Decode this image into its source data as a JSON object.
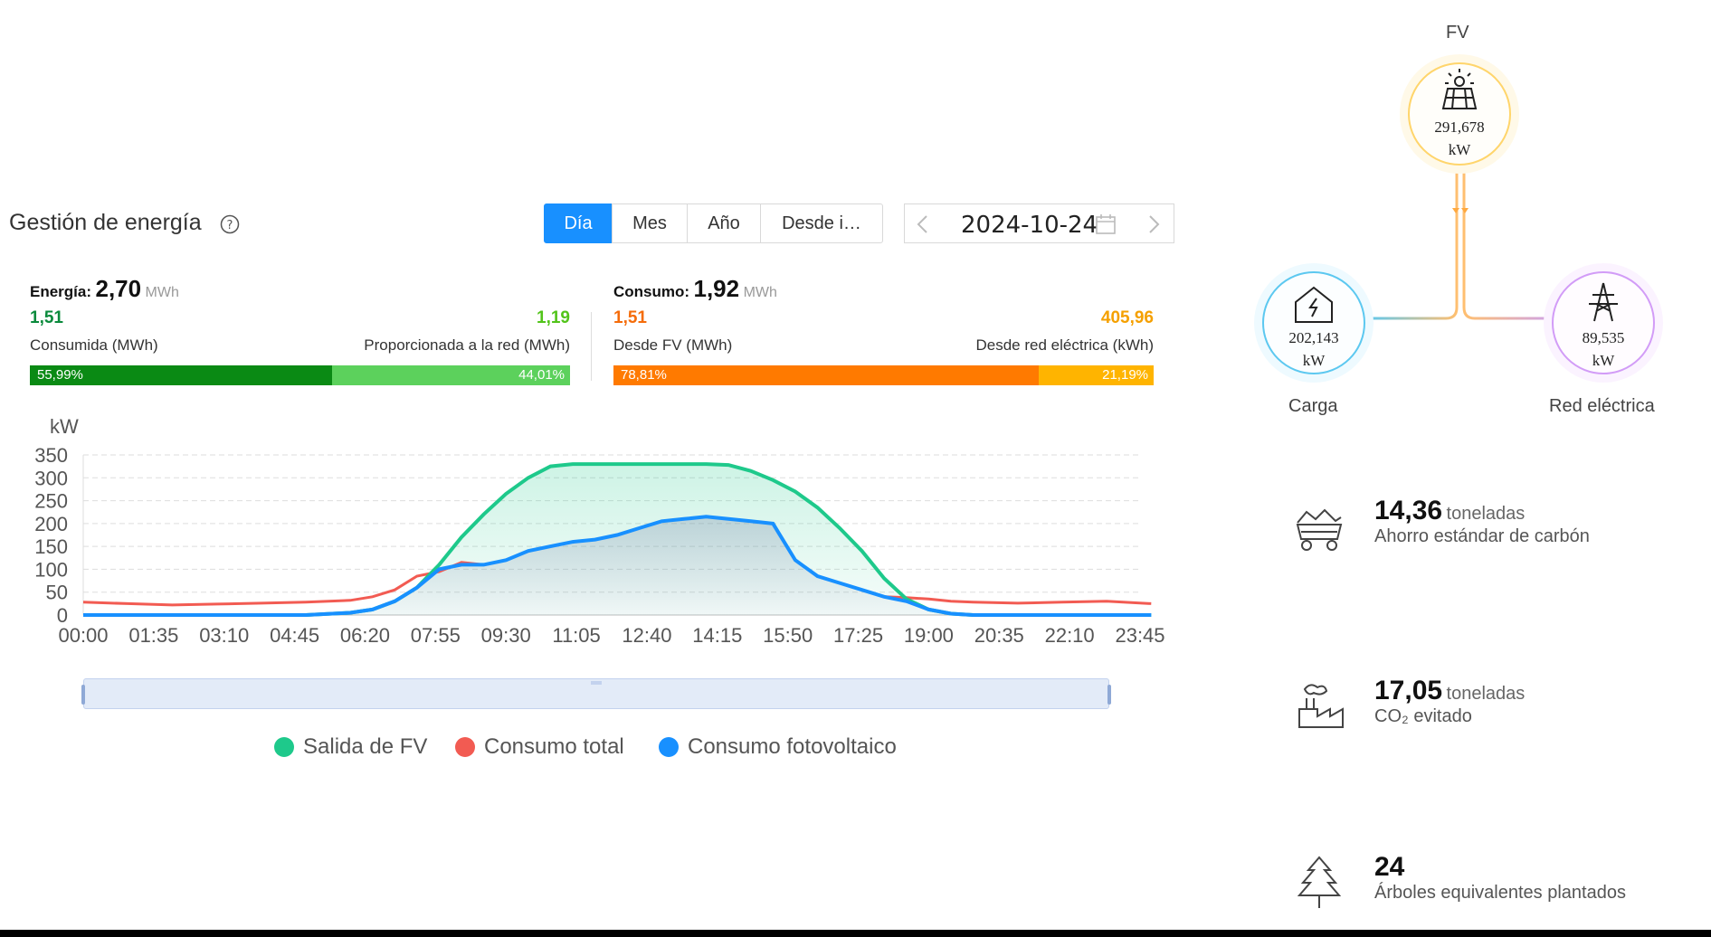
{
  "header": {
    "title": "Gestión de energía",
    "tabs": [
      "Día",
      "Mes",
      "Año",
      "Desde i…"
    ],
    "active_tab": "Día",
    "date": "2024-10-24"
  },
  "energy": {
    "label": "Energía:",
    "value": "2,70",
    "unit": "MWh",
    "left_value": "1,51",
    "left_label": "Consumida (MWh)",
    "right_value": "1,19",
    "right_label": "Proporcionada a la red (MWh)",
    "left_pct": "55,99%",
    "right_pct": "44,01%",
    "left_fraction": 0.5599,
    "colors": {
      "left": "#0a8a14",
      "right": "#5cd15c"
    }
  },
  "consumption": {
    "label": "Consumo:",
    "value": "1,92",
    "unit": "MWh",
    "left_value": "1,51",
    "left_label": "Desde FV (MWh)",
    "right_value": "405,96",
    "right_label": "Desde red eléctrica (kWh)",
    "left_pct": "78,81%",
    "right_pct": "21,19%",
    "left_fraction": 0.7881,
    "colors": {
      "left": "#ff7a00",
      "right": "#ffb400"
    }
  },
  "chart_data": {
    "type": "line",
    "ylabel": "kW",
    "ylim": [
      0,
      350
    ],
    "yticks": [
      "0",
      "50",
      "100",
      "150",
      "200",
      "250",
      "300",
      "350"
    ],
    "xticks": [
      "00:00",
      "01:35",
      "03:10",
      "04:45",
      "06:20",
      "07:55",
      "09:30",
      "11:05",
      "12:40",
      "14:15",
      "15:50",
      "17:25",
      "19:00",
      "20:35",
      "22:10",
      "23:45"
    ],
    "x_hours": [
      0,
      1,
      2,
      3,
      4,
      5,
      6,
      6.5,
      7,
      7.5,
      8,
      8.5,
      9,
      9.5,
      10,
      10.5,
      11,
      11.5,
      12,
      12.5,
      13,
      13.5,
      14,
      14.5,
      15,
      15.5,
      16,
      16.5,
      17,
      17.5,
      18,
      18.5,
      19,
      19.5,
      20,
      21,
      22,
      23,
      24
    ],
    "grid": true,
    "legend_position": "bottom",
    "series": [
      {
        "name": "Salida de FV",
        "color": "#1ec98b",
        "values": [
          0,
          0,
          0,
          0,
          0,
          0,
          5,
          12,
          30,
          60,
          110,
          170,
          220,
          265,
          300,
          325,
          330,
          330,
          330,
          330,
          330,
          330,
          330,
          328,
          315,
          295,
          270,
          235,
          190,
          140,
          80,
          35,
          12,
          3,
          0,
          0,
          0,
          0,
          0
        ]
      },
      {
        "name": "Consumo total",
        "color": "#f25b52",
        "values": [
          28,
          25,
          22,
          24,
          26,
          28,
          32,
          40,
          55,
          85,
          95,
          115,
          110,
          120,
          140,
          150,
          160,
          165,
          175,
          190,
          205,
          210,
          215,
          210,
          205,
          200,
          120,
          85,
          70,
          55,
          40,
          38,
          35,
          30,
          28,
          26,
          28,
          30,
          25
        ]
      },
      {
        "name": "Consumo fotovoltaico",
        "color": "#1890ff",
        "values": [
          0,
          0,
          0,
          0,
          0,
          0,
          5,
          12,
          30,
          60,
          100,
          110,
          110,
          120,
          140,
          150,
          160,
          165,
          175,
          190,
          205,
          210,
          215,
          210,
          205,
          200,
          120,
          85,
          70,
          55,
          40,
          30,
          12,
          3,
          0,
          0,
          0,
          0,
          0
        ]
      }
    ]
  },
  "flow": {
    "pv_label": "FV",
    "pv_value": "291,678",
    "pv_unit": "kW",
    "load_label": "Carga",
    "load_value": "202,143",
    "load_unit": "kW",
    "grid_label": "Red eléctrica",
    "grid_value": "89,535",
    "grid_unit": "kW"
  },
  "stats": [
    {
      "value": "14,36",
      "unit": "toneladas",
      "desc": "Ahorro estándar de carbón",
      "icon": "coal-cart-icon"
    },
    {
      "value": "17,05",
      "unit": "toneladas",
      "desc": "CO₂ evitado",
      "icon": "factory-icon"
    },
    {
      "value": "24",
      "unit": "",
      "desc": "Árboles equivalentes plantados",
      "icon": "tree-icon"
    }
  ]
}
